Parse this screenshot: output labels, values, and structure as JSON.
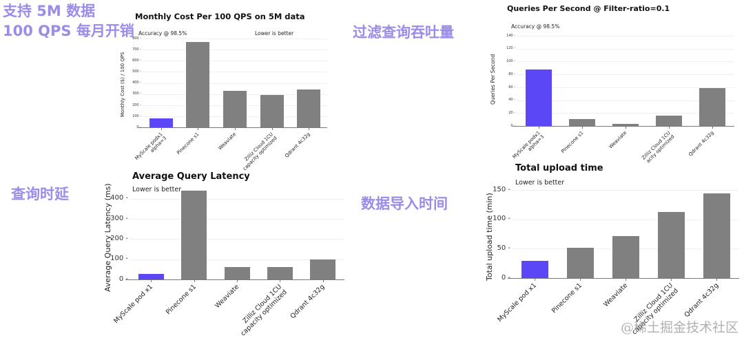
{
  "annotations": {
    "cost_cn_line1": "支持 5M 数据",
    "cost_cn_line2": "100 QPS 每月开销",
    "qps_cn": "过滤查询吞吐量",
    "latency_cn": "查询时延",
    "upload_cn": "数据导入时间"
  },
  "watermark": "@稀土掘金技术社区",
  "colors": {
    "highlight": "#5b47f5",
    "bar": "#808080",
    "annotation": "#9a8de9"
  },
  "chart_data": [
    {
      "type": "bar",
      "title": "Monthly Cost Per 100 QPS on 5M data",
      "notes": [
        "Accuracy @ 98.5%",
        "Lower is better"
      ],
      "xlabel": "",
      "ylabel": "Monthly Cost ($) / 100 QPS",
      "ylim": [
        0,
        800
      ],
      "yticks": [
        "0",
        "100",
        "200",
        "300",
        "400",
        "500",
        "600",
        "700",
        "800"
      ],
      "categories": [
        "MyScale podx1\nalpha=3",
        "Pinecone s1",
        "Weaviate",
        "Zilliz Cloud 1CU\ncapacity optimized",
        "Qdrant 4c32g"
      ],
      "values": [
        80,
        770,
        330,
        290,
        340
      ],
      "highlight_index": 0
    },
    {
      "type": "bar",
      "title": "Queries Per Second @ Filter-ratio=0.1",
      "notes": [
        "Accuracy @ 98.5%"
      ],
      "xlabel": "",
      "ylabel": "Queries Per Second",
      "ylim": [
        0,
        140
      ],
      "yticks": [
        "0",
        "20",
        "40",
        "60",
        "80",
        "100",
        "120",
        "140"
      ],
      "categories": [
        "MyScale podx1\nalpha=3",
        "Pinecone s1",
        "Weaviate",
        "Zilliz Cloud 1CU\nacity optimized",
        "Qdrant 4c32g"
      ],
      "values": [
        88,
        11,
        3,
        16,
        59
      ],
      "highlight_index": 0
    },
    {
      "type": "bar",
      "title": "Average Query Latency",
      "notes": [
        "Lower is better"
      ],
      "xlabel": "",
      "ylabel": "Average Query Latency (ms)",
      "ylim": [
        0,
        450
      ],
      "yticks": [
        "0",
        "100",
        "200",
        "300",
        "400"
      ],
      "categories": [
        "MyScale pod x1",
        "Pinecone s1",
        "Weaviate",
        "Zilliz Cloud 1CU\ncapacity optimized",
        "Qdrant 4c32g"
      ],
      "values": [
        27,
        440,
        60,
        62,
        98
      ],
      "highlight_index": 0
    },
    {
      "type": "bar",
      "title": "Total upload time",
      "notes": [
        "Lower is better"
      ],
      "xlabel": "",
      "ylabel": "Total upload time (min)",
      "ylim": [
        0,
        150
      ],
      "yticks": [
        "0",
        "50",
        "100",
        "150"
      ],
      "categories": [
        "MyScale pod x1",
        "Pinecone s1",
        "Weaviate",
        "Zilliz Cloud 1CU\ncapacity optimized",
        "Qdrant 4c32g"
      ],
      "values": [
        29,
        52,
        71,
        113,
        144
      ],
      "highlight_index": 0
    }
  ]
}
